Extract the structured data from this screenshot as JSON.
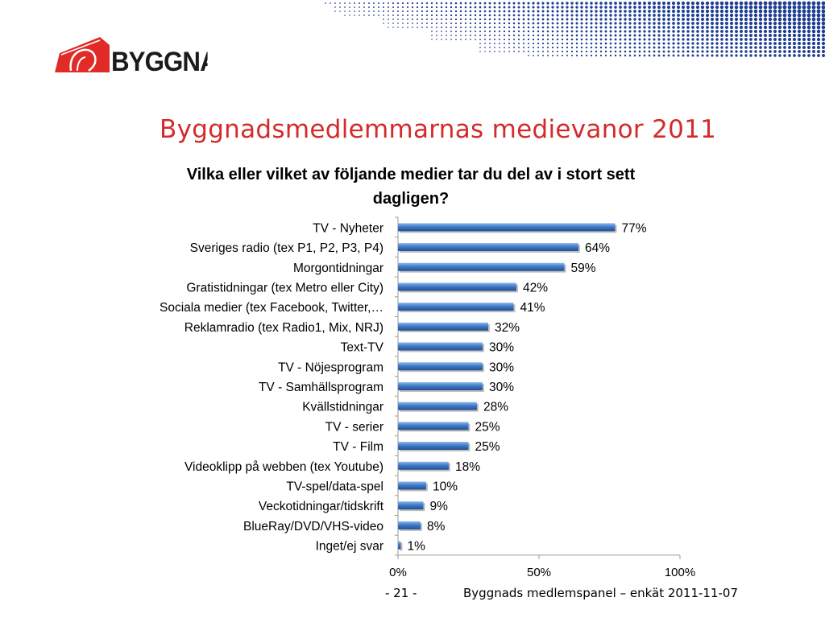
{
  "header": {
    "logo_text": "BYGGNADS",
    "title": "Byggnadsmedlemmarnas medievanor 2011"
  },
  "colors": {
    "title_red": "#d42a2a",
    "logo_red": "#e02b27",
    "bar_blue": "#3f7bc9",
    "dot_blue": "#1f3f93"
  },
  "chart_data": {
    "type": "bar",
    "orientation": "horizontal",
    "title": "Vilka eller vilket av följande medier tar du del av i stort sett dagligen?",
    "categories": [
      "TV - Nyheter",
      "Sveriges radio (tex P1, P2, P3, P4)",
      "Morgontidningar",
      "Gratistidningar (tex Metro eller City)",
      "Sociala medier (tex Facebook, Twitter,…",
      "Reklamradio (tex Radio1, Mix, NRJ)",
      "Text-TV",
      "TV - Nöjesprogram",
      "TV - Samhällsprogram",
      "Kvällstidningar",
      "TV - serier",
      "TV - Film",
      "Videoklipp på webben (tex Youtube)",
      "TV-spel/data-spel",
      "Veckotidningar/tidskrift",
      "BlueRay/DVD/VHS-video",
      "Inget/ej svar"
    ],
    "values": [
      77,
      64,
      59,
      42,
      41,
      32,
      30,
      30,
      30,
      28,
      25,
      25,
      18,
      10,
      9,
      8,
      1
    ],
    "value_labels": [
      "77%",
      "64%",
      "59%",
      "42%",
      "41%",
      "32%",
      "30%",
      "30%",
      "30%",
      "28%",
      "25%",
      "25%",
      "18%",
      "10%",
      "9%",
      "8%",
      "1%"
    ],
    "xlim": [
      0,
      100
    ],
    "x_ticks": [
      0,
      50,
      100
    ],
    "x_tick_labels": [
      "0%",
      "50%",
      "100%"
    ],
    "grid": false,
    "legend": "none"
  },
  "footer": {
    "page": "- 21 -",
    "source": "Byggnads medlemspanel – enkät 2011-11-07"
  }
}
